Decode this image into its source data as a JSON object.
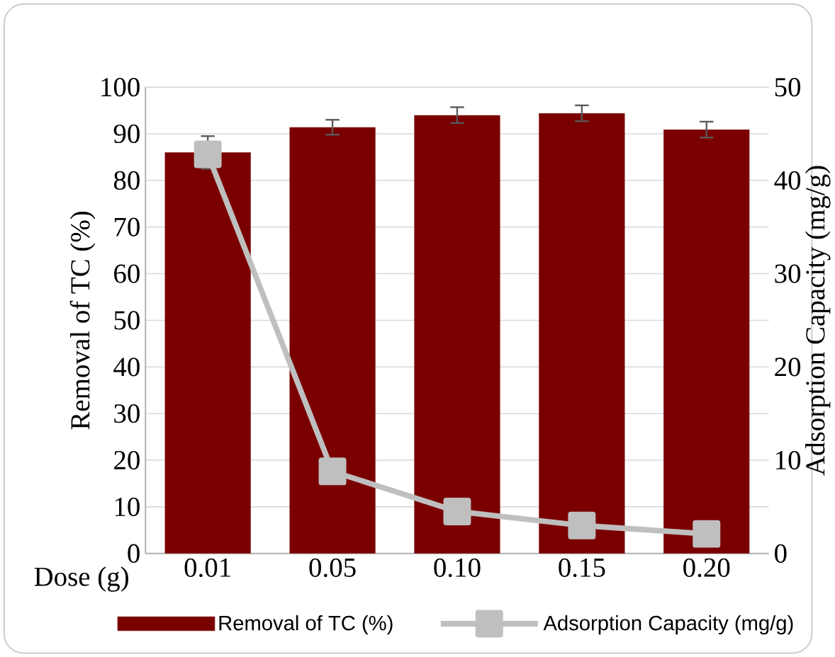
{
  "chart_data": {
    "type": "bar",
    "xlabel": "Dose (g)",
    "ylabel": "Removal of TC (%)",
    "y2label": "Adsorption Capacity (mg/g)",
    "categories": [
      "0.01",
      "0.05",
      "0.10",
      "0.15",
      "0.20"
    ],
    "series": [
      {
        "name": "Removal of TC (%)",
        "color": "#7a0000",
        "values": [
          86,
          91.4,
          94,
          94.4,
          90.9
        ],
        "errors": [
          3.5,
          1.6,
          1.7,
          1.7,
          1.7
        ]
      },
      {
        "name": "Adsorption Capacity (mg/g)",
        "type": "line",
        "axis": "y2",
        "color": "#bfbfbf",
        "marker": "square",
        "values": [
          42.8,
          8.8,
          4.5,
          3.0,
          2.1
        ]
      }
    ],
    "ylim": [
      0,
      100
    ],
    "yticks": [
      0,
      10,
      20,
      30,
      40,
      50,
      60,
      70,
      80,
      90,
      100
    ],
    "y2lim": [
      0,
      50
    ],
    "y2ticks": [
      0,
      10,
      20,
      30,
      40,
      50
    ],
    "grid": "y",
    "legend": "bottom"
  }
}
